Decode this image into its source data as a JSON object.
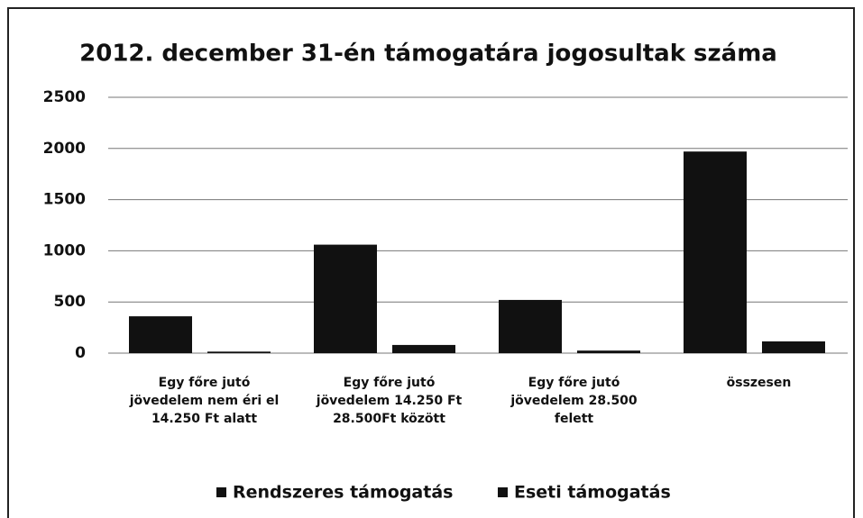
{
  "chart_data": {
    "type": "bar",
    "title": "2012. december 31-én támogatára jogosultak száma",
    "categories": [
      "Egy főre jutó\njövedelem nem éri el\n14.250 Ft alatt",
      "Egy főre jutó\njövedelem  14.250 Ft\n28.500Ft között",
      "Egy főre jutó\njövedelem  28.500\nfelett",
      "összesen"
    ],
    "series": [
      {
        "name": "Rendszeres támogatás",
        "color": "#111111",
        "values": [
          360,
          1060,
          520,
          1970
        ]
      },
      {
        "name": "Eseti támogatás",
        "color": "#111111",
        "values": [
          15,
          80,
          25,
          115
        ]
      }
    ],
    "ylim": [
      0,
      2500
    ],
    "yticks": [
      0,
      500,
      1000,
      1500,
      2000,
      2500
    ],
    "grid": true,
    "legend": "bottom"
  }
}
